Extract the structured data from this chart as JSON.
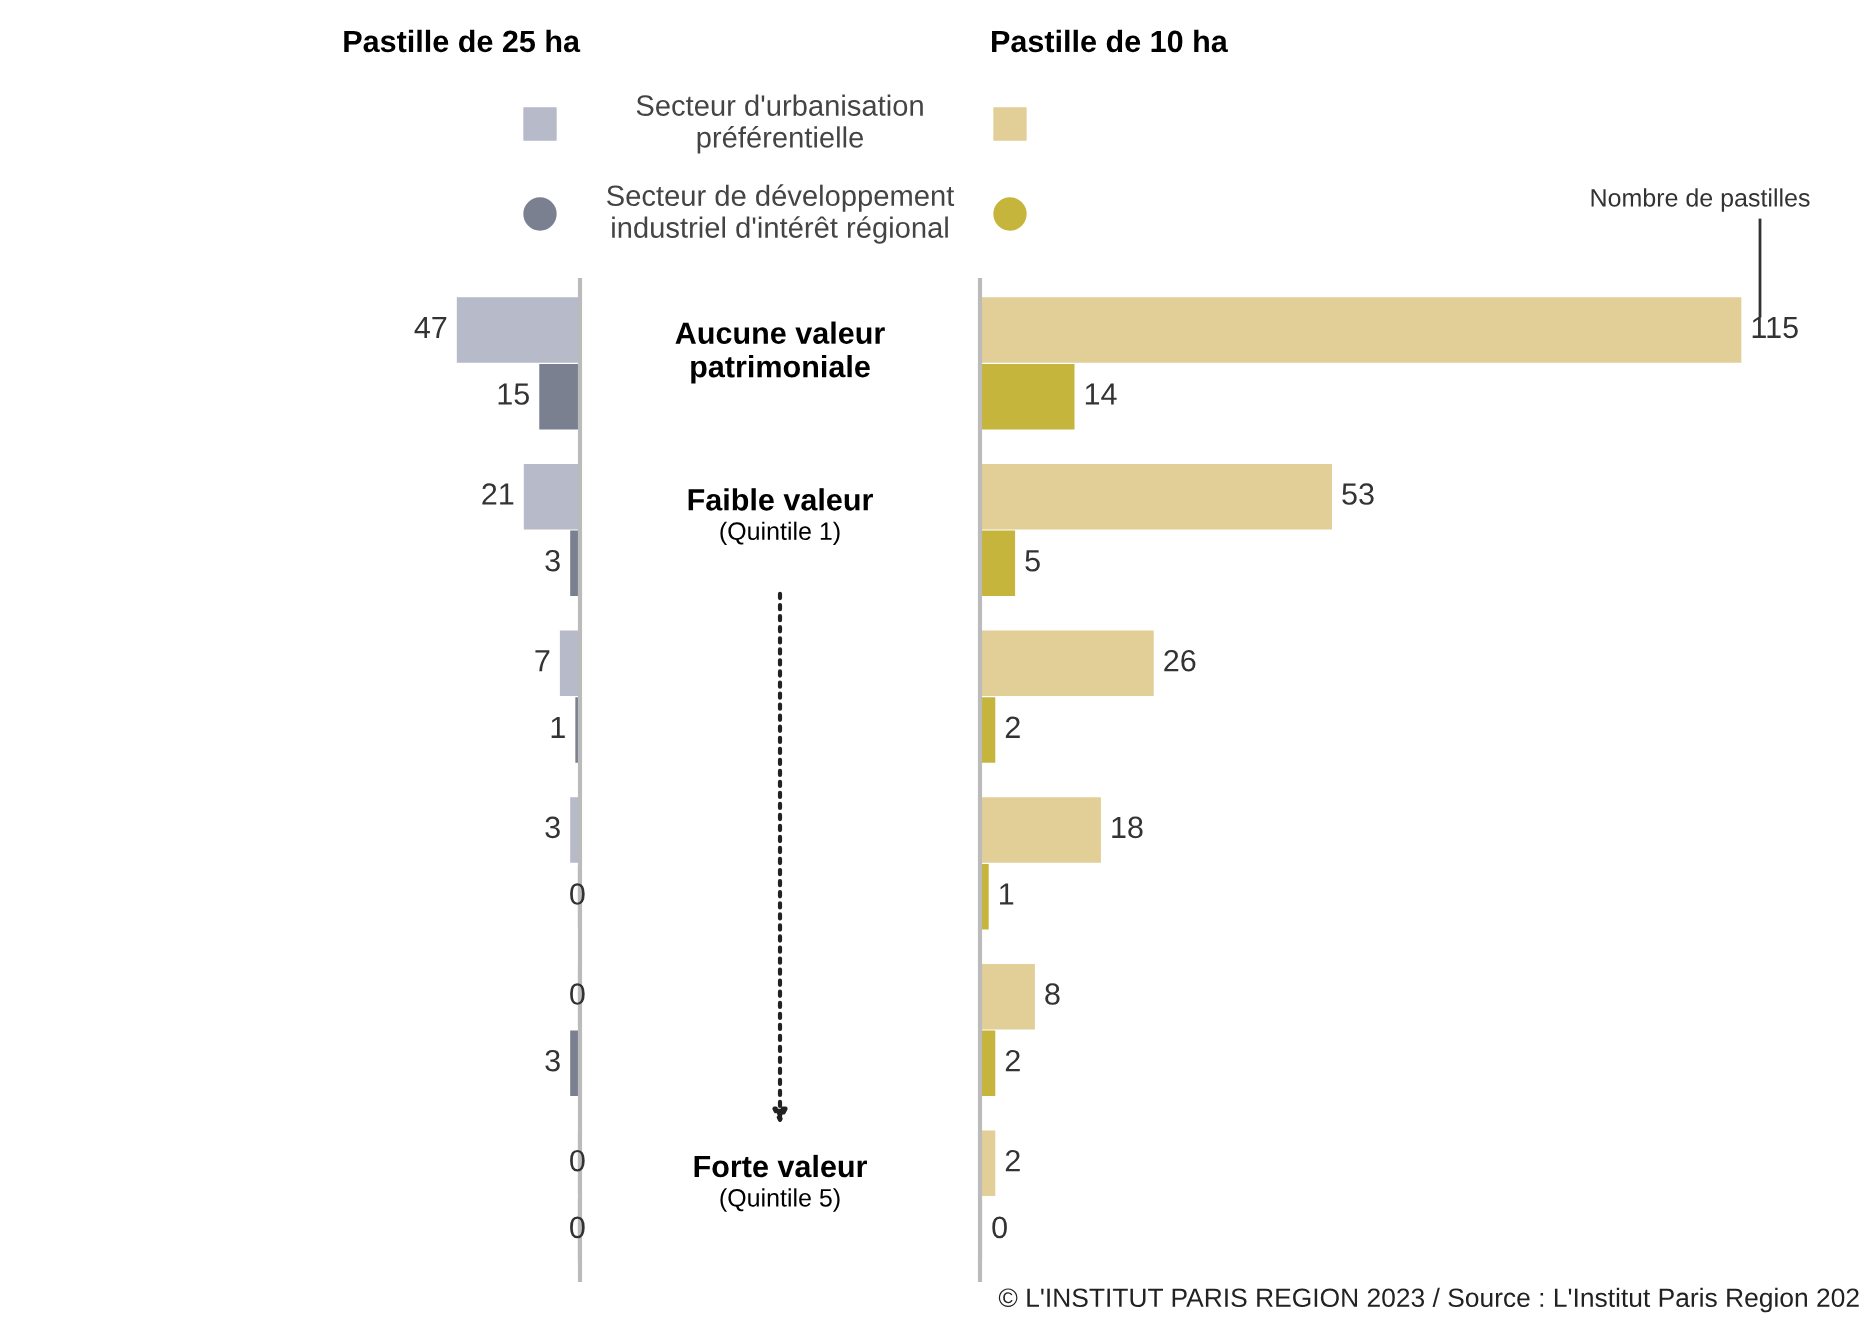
{
  "chart_data": [
    {
      "type": "bar",
      "orientation": "horizontal",
      "title": "Pastille de 25 ha",
      "categories": [
        "Aucune valeur\npatrimoniale",
        "Faible valeur\n(Quintile 1)",
        null,
        null,
        null,
        "Forte valeur\n(Quintile 5)"
      ],
      "data_labels": true,
      "legend": "top",
      "series": [
        {
          "name": "Secteur d'urbanisation\npréférentielle",
          "color": "#b7bac8",
          "marker": "square",
          "values": [
            47,
            21,
            7,
            3,
            0,
            0
          ]
        },
        {
          "name": "Secteur de développement\nindustriel d'intérêt régional",
          "color": "#7b8090",
          "marker": "circle",
          "values": [
            15,
            3,
            1,
            0,
            3,
            0
          ]
        }
      ]
    },
    {
      "type": "bar",
      "orientation": "horizontal",
      "title": "Pastille de 10 ha",
      "categories": [
        null,
        null,
        null,
        null,
        null,
        null
      ],
      "data_labels": true,
      "annotations": [
        "Nombre de pastilles",
        "© L'INSTITUT PARIS REGION 2023 / Source : L'Institut Paris Region 202"
      ],
      "series": [
        {
          "color": "#e2cf98",
          "marker": "square",
          "values": [
            115,
            53,
            26,
            18,
            8,
            2
          ]
        },
        {
          "color": "#c6b53c",
          "marker": "circle",
          "values": [
            14,
            5,
            2,
            1,
            2,
            0
          ]
        }
      ]
    }
  ]
}
